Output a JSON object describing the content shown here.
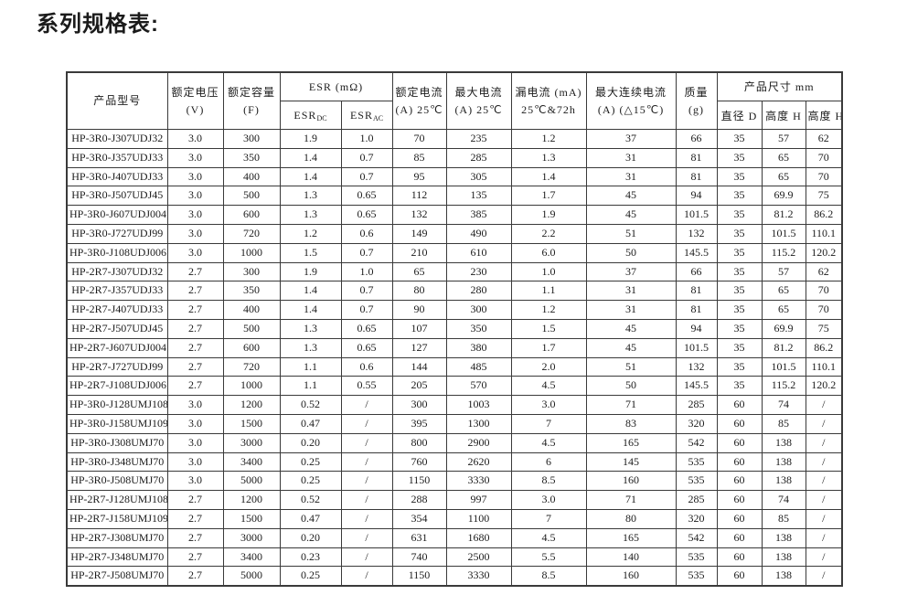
{
  "page": {
    "title": "系列规格表:"
  },
  "table": {
    "headers": {
      "product_model": {
        "line1": "产品型号"
      },
      "rated_voltage": {
        "line1": "额定电压",
        "line2": "(V)"
      },
      "rated_capacity": {
        "line1": "额定容量",
        "line2": "(F)"
      },
      "esr_group": {
        "line1": "ESR (mΩ)"
      },
      "esr_dc": {
        "base": "ESR",
        "sub": "DC"
      },
      "esr_ac": {
        "base": "ESR",
        "sub": "AC"
      },
      "rated_current": {
        "line1": "额定电流",
        "line2": "(A) 25℃"
      },
      "max_current": {
        "line1": "最大电流",
        "line2": "(A) 25℃"
      },
      "leakage_current": {
        "line1": "漏电流 (mA)",
        "line2": "25℃&72h"
      },
      "max_continuous_current": {
        "line1": "最大连续电流",
        "line2": "(A) (△15℃)"
      },
      "mass": {
        "line1": "质量",
        "line2": "(g)"
      },
      "dimensions_group": {
        "line1": "产品尺寸 mm"
      },
      "diameter_d": {
        "line1": "直径 D"
      },
      "height_h": {
        "line1": "高度 H"
      },
      "height_h1": {
        "line1": "高度 H1"
      }
    },
    "rows": [
      [
        "HP-3R0-J307UDJ32",
        "3.0",
        "300",
        "1.9",
        "1.0",
        "70",
        "235",
        "1.2",
        "37",
        "66",
        "35",
        "57",
        "62"
      ],
      [
        "HP-3R0-J357UDJ33",
        "3.0",
        "350",
        "1.4",
        "0.7",
        "85",
        "285",
        "1.3",
        "31",
        "81",
        "35",
        "65",
        "70"
      ],
      [
        "HP-3R0-J407UDJ33",
        "3.0",
        "400",
        "1.4",
        "0.7",
        "95",
        "305",
        "1.4",
        "31",
        "81",
        "35",
        "65",
        "70"
      ],
      [
        "HP-3R0-J507UDJ45",
        "3.0",
        "500",
        "1.3",
        "0.65",
        "112",
        "135",
        "1.7",
        "45",
        "94",
        "35",
        "69.9",
        "75"
      ],
      [
        "HP-3R0-J607UDJ004",
        "3.0",
        "600",
        "1.3",
        "0.65",
        "132",
        "385",
        "1.9",
        "45",
        "101.5",
        "35",
        "81.2",
        "86.2"
      ],
      [
        "HP-3R0-J727UDJ99",
        "3.0",
        "720",
        "1.2",
        "0.6",
        "149",
        "490",
        "2.2",
        "51",
        "132",
        "35",
        "101.5",
        "110.1"
      ],
      [
        "HP-3R0-J108UDJ006",
        "3.0",
        "1000",
        "1.5",
        "0.7",
        "210",
        "610",
        "6.0",
        "50",
        "145.5",
        "35",
        "115.2",
        "120.2"
      ],
      [
        "HP-2R7-J307UDJ32",
        "2.7",
        "300",
        "1.9",
        "1.0",
        "65",
        "230",
        "1.0",
        "37",
        "66",
        "35",
        "57",
        "62"
      ],
      [
        "HP-2R7-J357UDJ33",
        "2.7",
        "350",
        "1.4",
        "0.7",
        "80",
        "280",
        "1.1",
        "31",
        "81",
        "35",
        "65",
        "70"
      ],
      [
        "HP-2R7-J407UDJ33",
        "2.7",
        "400",
        "1.4",
        "0.7",
        "90",
        "300",
        "1.2",
        "31",
        "81",
        "35",
        "65",
        "70"
      ],
      [
        "HP-2R7-J507UDJ45",
        "2.7",
        "500",
        "1.3",
        "0.65",
        "107",
        "350",
        "1.5",
        "45",
        "94",
        "35",
        "69.9",
        "75"
      ],
      [
        "HP-2R7-J607UDJ004",
        "2.7",
        "600",
        "1.3",
        "0.65",
        "127",
        "380",
        "1.7",
        "45",
        "101.5",
        "35",
        "81.2",
        "86.2"
      ],
      [
        "HP-2R7-J727UDJ99",
        "2.7",
        "720",
        "1.1",
        "0.6",
        "144",
        "485",
        "2.0",
        "51",
        "132",
        "35",
        "101.5",
        "110.1"
      ],
      [
        "HP-2R7-J108UDJ006",
        "2.7",
        "1000",
        "1.1",
        "0.55",
        "205",
        "570",
        "4.5",
        "50",
        "145.5",
        "35",
        "115.2",
        "120.2"
      ],
      [
        "HP-3R0-J128UMJ108",
        "3.0",
        "1200",
        "0.52",
        "/",
        "300",
        "1003",
        "3.0",
        "71",
        "285",
        "60",
        "74",
        "/"
      ],
      [
        "HP-3R0-J158UMJ109",
        "3.0",
        "1500",
        "0.47",
        "/",
        "395",
        "1300",
        "7",
        "83",
        "320",
        "60",
        "85",
        "/"
      ],
      [
        "HP-3R0-J308UMJ70",
        "3.0",
        "3000",
        "0.20",
        "/",
        "800",
        "2900",
        "4.5",
        "165",
        "542",
        "60",
        "138",
        "/"
      ],
      [
        "HP-3R0-J348UMJ70",
        "3.0",
        "3400",
        "0.25",
        "/",
        "760",
        "2620",
        "6",
        "145",
        "535",
        "60",
        "138",
        "/"
      ],
      [
        "HP-3R0-J508UMJ70",
        "3.0",
        "5000",
        "0.25",
        "/",
        "1150",
        "3330",
        "8.5",
        "160",
        "535",
        "60",
        "138",
        "/"
      ],
      [
        "HP-2R7-J128UMJ108",
        "2.7",
        "1200",
        "0.52",
        "/",
        "288",
        "997",
        "3.0",
        "71",
        "285",
        "60",
        "74",
        "/"
      ],
      [
        "HP-2R7-J158UMJ109",
        "2.7",
        "1500",
        "0.47",
        "/",
        "354",
        "1100",
        "7",
        "80",
        "320",
        "60",
        "85",
        "/"
      ],
      [
        "HP-2R7-J308UMJ70",
        "2.7",
        "3000",
        "0.20",
        "/",
        "631",
        "1680",
        "4.5",
        "165",
        "542",
        "60",
        "138",
        "/"
      ],
      [
        "HP-2R7-J348UMJ70",
        "2.7",
        "3400",
        "0.23",
        "/",
        "740",
        "2500",
        "5.5",
        "140",
        "535",
        "60",
        "138",
        "/"
      ],
      [
        "HP-2R7-J508UMJ70",
        "2.7",
        "5000",
        "0.25",
        "/",
        "1150",
        "3330",
        "8.5",
        "160",
        "535",
        "60",
        "138",
        "/"
      ]
    ]
  }
}
